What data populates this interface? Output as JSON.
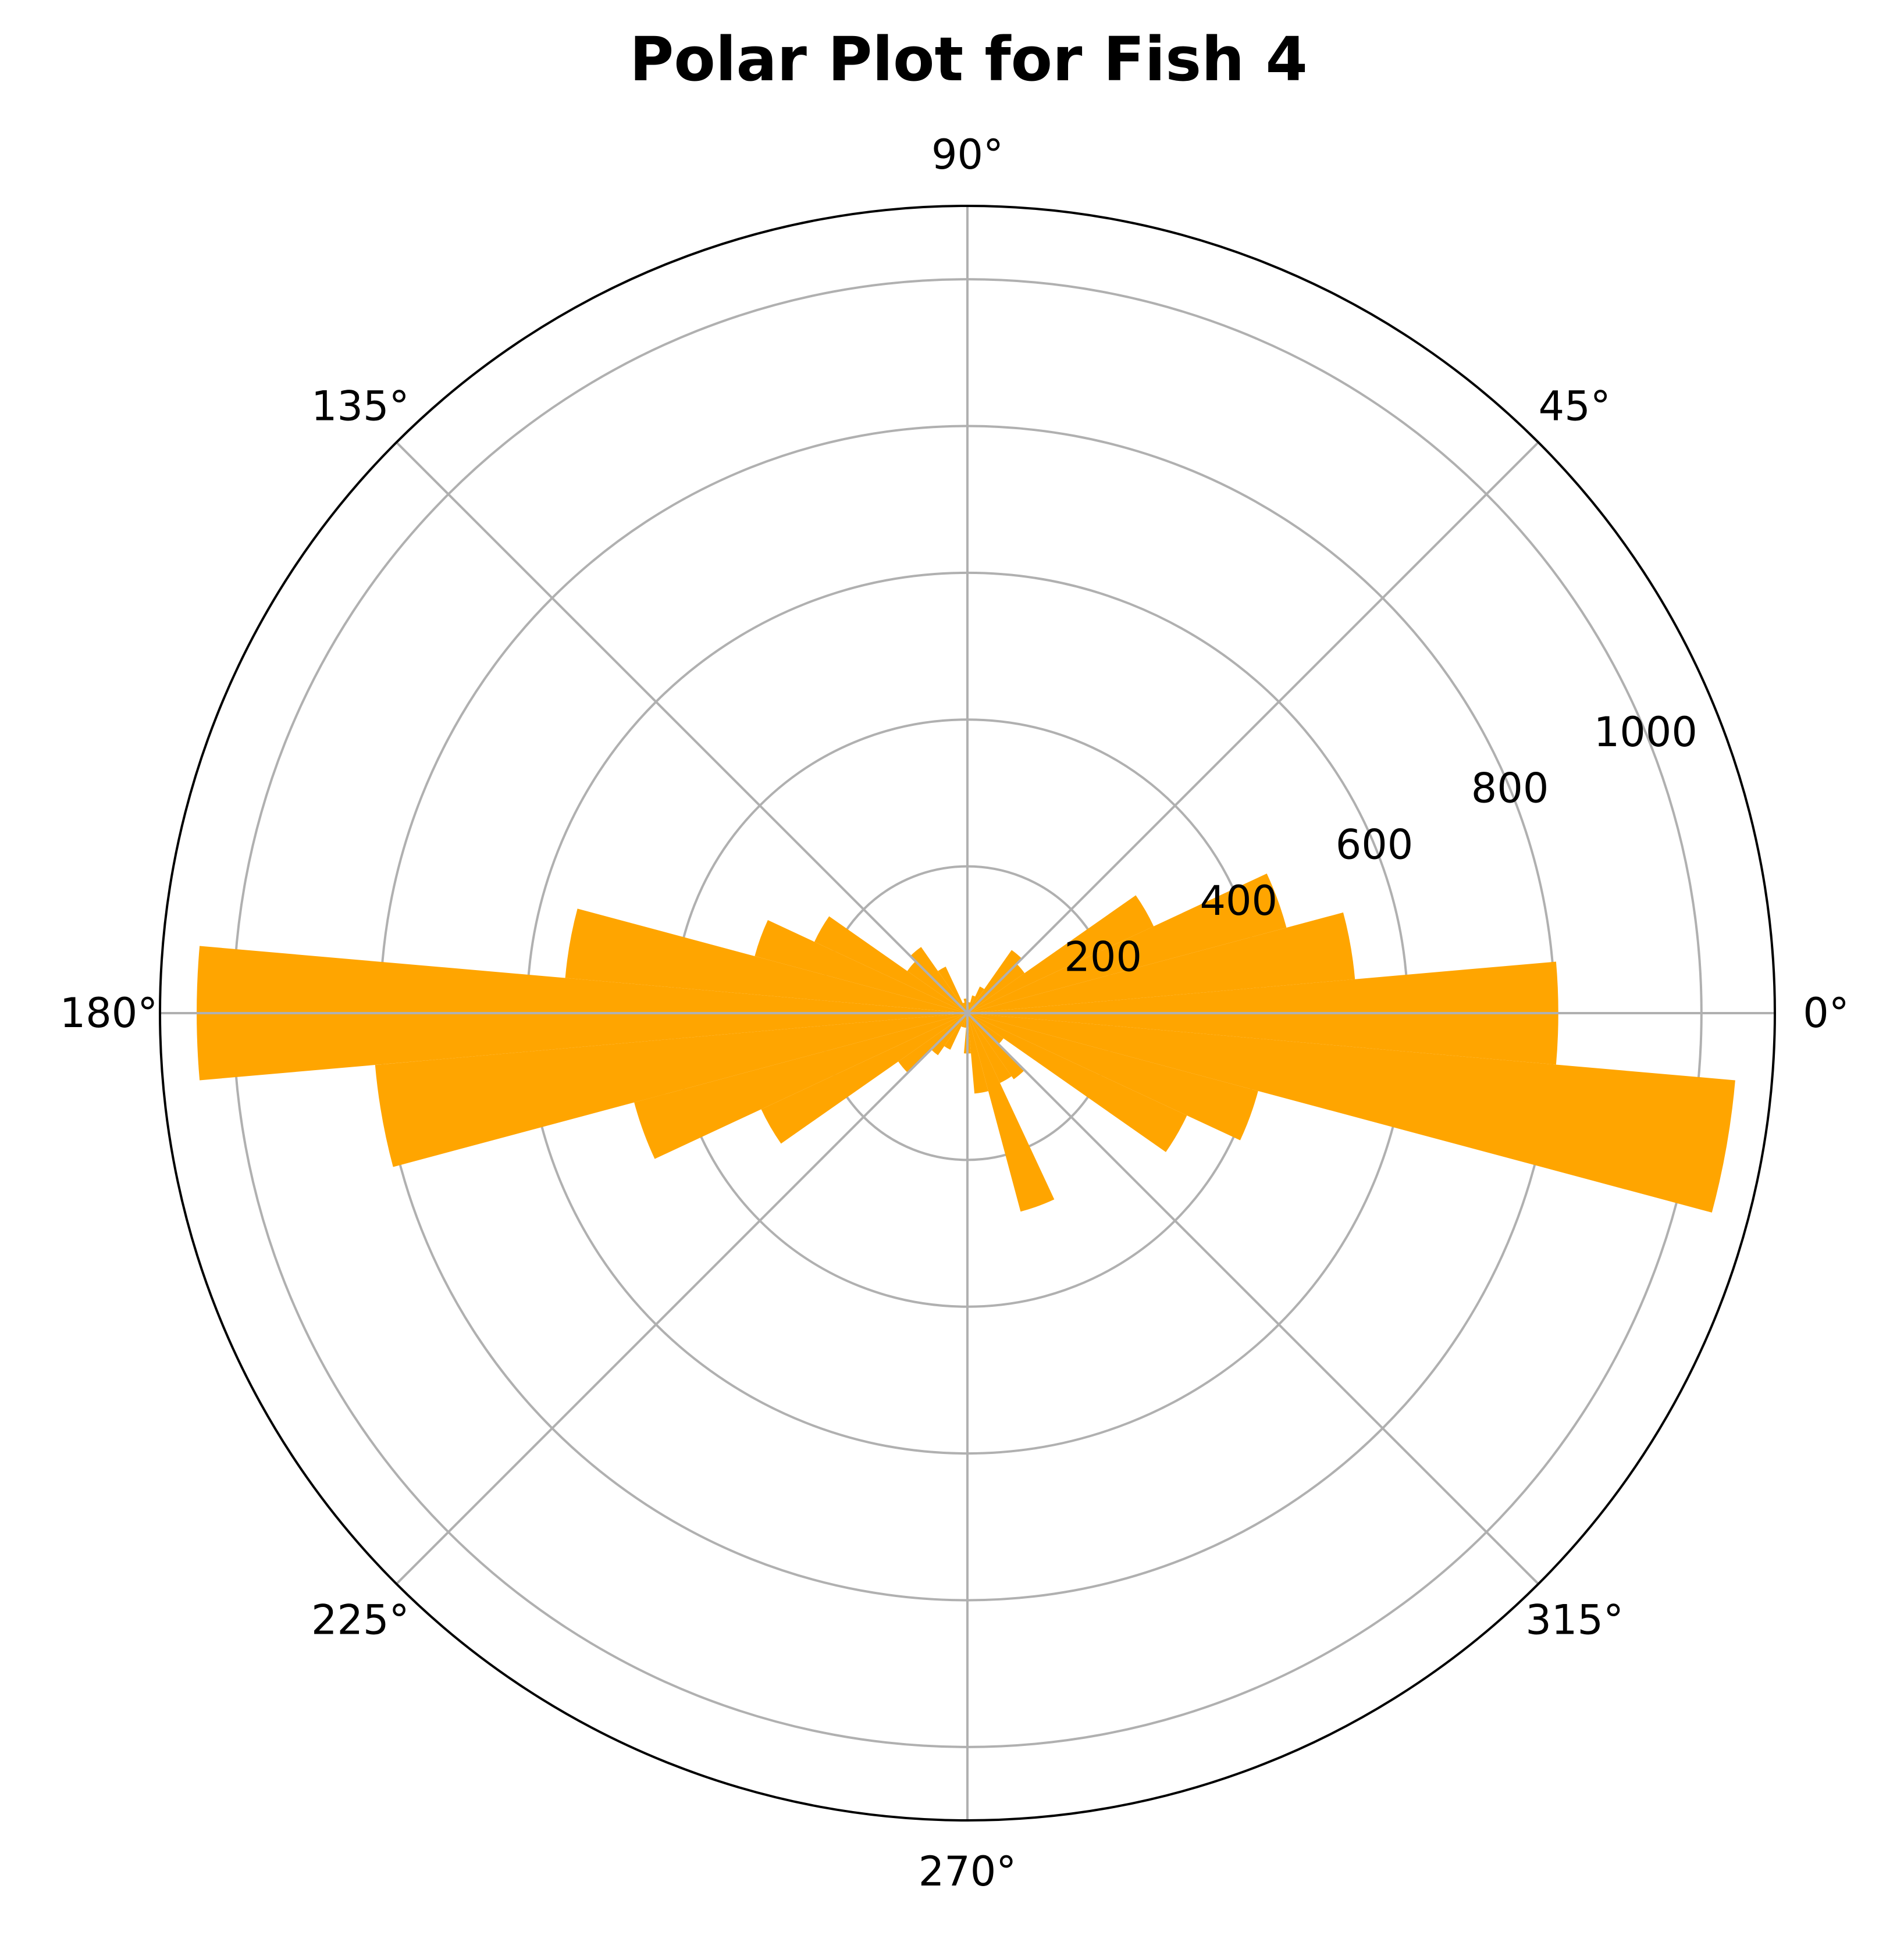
{
  "chart_data": {
    "type": "bar",
    "coordinate_system": "polar",
    "title": "Polar Plot for Fish 4",
    "angle_unit": "degrees",
    "angular_tick_labels": [
      "0°",
      "45°",
      "90°",
      "135°",
      "180°",
      "225°",
      "270°",
      "315°"
    ],
    "angular_ticks": [
      0,
      45,
      90,
      135,
      180,
      225,
      270,
      315
    ],
    "radial_ticks": [
      200,
      400,
      600,
      800,
      1000
    ],
    "radial_tick_labels": [
      "200",
      "400",
      "600",
      "800",
      "1000"
    ],
    "rlim": [
      0,
      1100
    ],
    "bin_width_deg": 10,
    "theta": [
      0,
      10,
      20,
      30,
      40,
      50,
      60,
      70,
      80,
      90,
      100,
      110,
      120,
      130,
      140,
      150,
      160,
      170,
      180,
      190,
      200,
      210,
      220,
      230,
      240,
      250,
      260,
      270,
      280,
      290,
      300,
      310,
      320,
      330,
      340,
      350
    ],
    "values": [
      805,
      530,
      450,
      280,
      95,
      105,
      40,
      25,
      15,
      15,
      20,
      15,
      70,
      110,
      100,
      230,
      300,
      550,
      1050,
      810,
      470,
      310,
      115,
      70,
      55,
      20,
      20,
      55,
      110,
      280,
      105,
      110,
      60,
      330,
      410,
      1050
    ],
    "grid": true,
    "bar_color": "#FFA500",
    "grid_color": "#B0B0B0",
    "frame_color": "#000000"
  }
}
